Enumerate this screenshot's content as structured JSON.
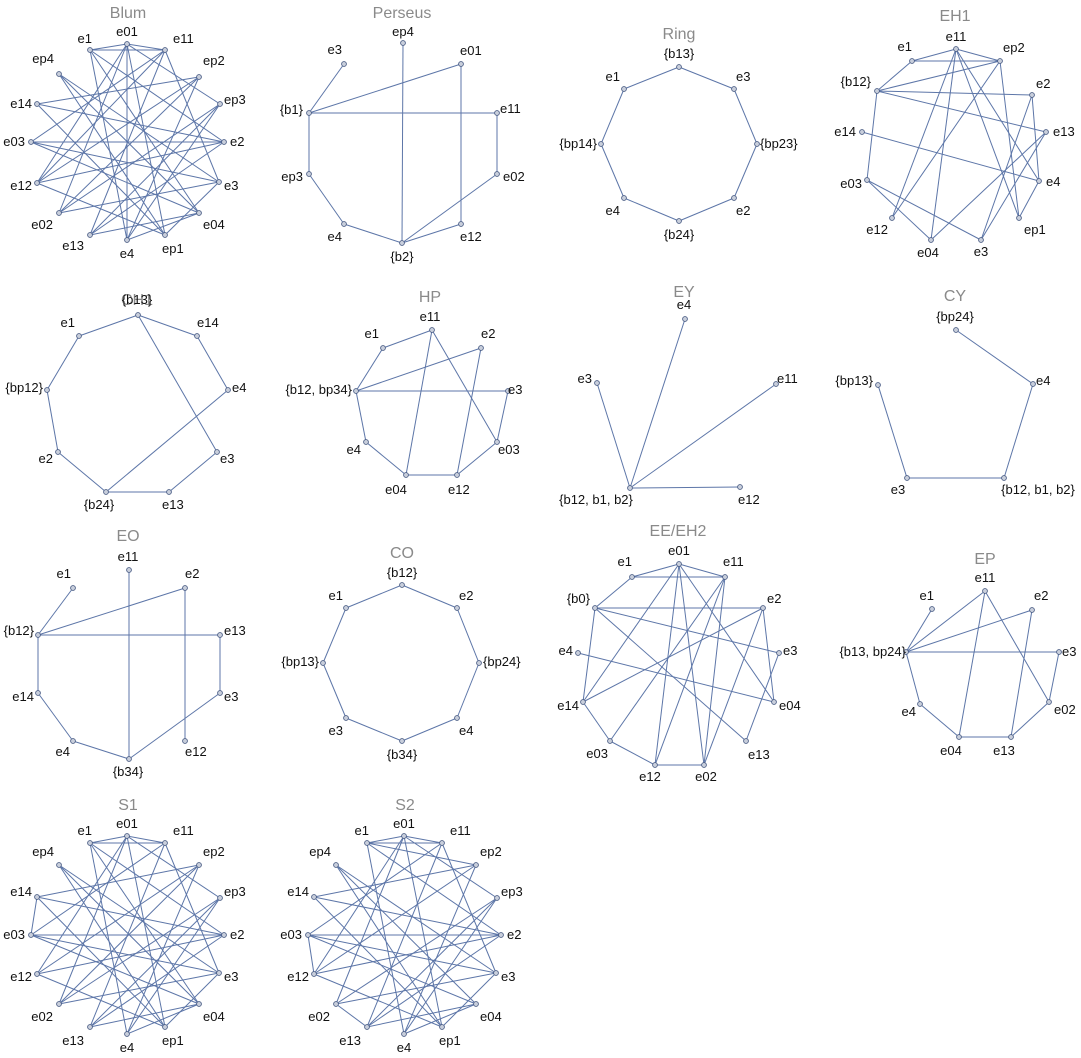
{
  "colors": {
    "edge": "#5d76a8",
    "node_fill": "#c9cfdc",
    "node_stroke": "#4d5f86",
    "title": "#8a8a8a",
    "label": "#111111"
  },
  "graphs": [
    {
      "id": "blum",
      "title": "Blum",
      "nodes": [
        "e01",
        "e11",
        "ep2",
        "ep3",
        "e2",
        "e3",
        "e04",
        "ep1",
        "e4",
        "e13",
        "e02",
        "e12",
        "e03",
        "e14",
        "ep4",
        "e1"
      ],
      "edges": [
        [
          "e1",
          "e01"
        ],
        [
          "e1",
          "e11"
        ],
        [
          "e1",
          "e4"
        ],
        [
          "e1",
          "e2"
        ],
        [
          "e1",
          "e04"
        ],
        [
          "e01",
          "e11"
        ],
        [
          "e01",
          "e12"
        ],
        [
          "e01",
          "e02"
        ],
        [
          "e01",
          "ep1"
        ],
        [
          "e01",
          "e4"
        ],
        [
          "e01",
          "ep3"
        ],
        [
          "e11",
          "e13"
        ],
        [
          "e11",
          "e03"
        ],
        [
          "e11",
          "e3"
        ],
        [
          "ep2",
          "e14"
        ],
        [
          "ep2",
          "e12"
        ],
        [
          "ep2",
          "e4"
        ],
        [
          "ep3",
          "e02"
        ],
        [
          "ep3",
          "e13"
        ],
        [
          "ep4",
          "e3"
        ],
        [
          "ep4",
          "ep1"
        ],
        [
          "ep4",
          "e04"
        ],
        [
          "e14",
          "e2"
        ],
        [
          "e14",
          "ep1"
        ],
        [
          "e03",
          "e3"
        ],
        [
          "e03",
          "e2"
        ],
        [
          "e03",
          "e04"
        ],
        [
          "e12",
          "e2"
        ],
        [
          "e12",
          "e11"
        ],
        [
          "e02",
          "e3"
        ],
        [
          "e02",
          "ep2"
        ],
        [
          "e13",
          "e2"
        ],
        [
          "e13",
          "e04"
        ],
        [
          "e4",
          "e04"
        ],
        [
          "e4",
          "ep3"
        ],
        [
          "ep1",
          "e3"
        ],
        [
          "ep1",
          "e12"
        ]
      ]
    },
    {
      "id": "perseus",
      "title": "Perseus",
      "nodes": [
        "ep4",
        "e01",
        "e11",
        "e02",
        "e12",
        "{b2}",
        "e4",
        "ep3",
        "{b1}",
        "e3"
      ],
      "edges": [
        [
          "e3",
          "{b1}"
        ],
        [
          "{b1}",
          "ep3"
        ],
        [
          "ep3",
          "e4"
        ],
        [
          "e4",
          "{b2}"
        ],
        [
          "{b2}",
          "e12"
        ],
        [
          "{b2}",
          "e02"
        ],
        [
          "e02",
          "e11"
        ],
        [
          "{b1}",
          "e11"
        ],
        [
          "{b1}",
          "e01"
        ],
        [
          "ep4",
          "{b2}"
        ],
        [
          "e01",
          "e12"
        ]
      ]
    },
    {
      "id": "ring",
      "title": "Ring",
      "nodes": [
        "{b13}",
        "e3",
        "{bp23}",
        "e2",
        "{b24}",
        "e4",
        "{bp14}",
        "e1"
      ],
      "edges": [
        [
          "{b13}",
          "e3"
        ],
        [
          "e3",
          "{bp23}"
        ],
        [
          "{bp23}",
          "e2"
        ],
        [
          "e2",
          "{b24}"
        ],
        [
          "{b24}",
          "e4"
        ],
        [
          "e4",
          "{bp14}"
        ],
        [
          "{bp14}",
          "e1"
        ],
        [
          "e1",
          "{b13}"
        ]
      ]
    },
    {
      "id": "eh1",
      "title": "EH1",
      "nodes": [
        "e11",
        "ep2",
        "e2",
        "e13",
        "e4",
        "ep1",
        "e3",
        "e04",
        "e12",
        "e03",
        "e14",
        "{b12}",
        "e1"
      ],
      "edges": [
        [
          "e1",
          "e11"
        ],
        [
          "e1",
          "ep2"
        ],
        [
          "e11",
          "ep2"
        ],
        [
          "e11",
          "e12"
        ],
        [
          "e11",
          "e04"
        ],
        [
          "e11",
          "e4"
        ],
        [
          "e11",
          "ep1"
        ],
        [
          "{b12}",
          "e1"
        ],
        [
          "{b12}",
          "e2"
        ],
        [
          "{b12}",
          "e13"
        ],
        [
          "{b12}",
          "ep2"
        ],
        [
          "{b12}",
          "e03"
        ],
        [
          "e14",
          "e4"
        ],
        [
          "e03",
          "e3"
        ],
        [
          "e03",
          "e04"
        ],
        [
          "e04",
          "e13"
        ],
        [
          "e12",
          "ep2"
        ],
        [
          "e3",
          "e2"
        ],
        [
          "e3",
          "e13"
        ],
        [
          "ep1",
          "ep2"
        ],
        [
          "ep1",
          "e4"
        ],
        [
          "e4",
          "e2"
        ]
      ]
    },
    {
      "id": "ch1",
      "title": "CH1",
      "nodes": [
        "{b13}",
        "e14",
        "e4",
        "e3",
        "e13",
        "{b24}",
        "e2",
        "{bp12}",
        "e1"
      ],
      "edges": [
        [
          "{b13}",
          "e14"
        ],
        [
          "e14",
          "e4"
        ],
        [
          "{b13}",
          "e3"
        ],
        [
          "e3",
          "e13"
        ],
        [
          "e13",
          "{b24}"
        ],
        [
          "{b24}",
          "e2"
        ],
        [
          "e2",
          "{bp12}"
        ],
        [
          "{bp12}",
          "e1"
        ],
        [
          "e1",
          "{b13}"
        ],
        [
          "{b24}",
          "e4"
        ]
      ]
    },
    {
      "id": "hp",
      "title": "HP",
      "nodes": [
        "e11",
        "e2",
        "e3",
        "e03",
        "e12",
        "e04",
        "e4",
        "{b12, bp34}",
        "e1"
      ],
      "edges": [
        [
          "e1",
          "e11"
        ],
        [
          "e1",
          "{b12, bp34}"
        ],
        [
          "{b12, bp34}",
          "e4"
        ],
        [
          "e4",
          "e04"
        ],
        [
          "e04",
          "e12"
        ],
        [
          "e12",
          "e03"
        ],
        [
          "e03",
          "e3"
        ],
        [
          "{b12, bp34}",
          "e3"
        ],
        [
          "{b12, bp34}",
          "e2"
        ],
        [
          "e11",
          "e04"
        ],
        [
          "e11",
          "e03"
        ],
        [
          "e2",
          "e12"
        ]
      ]
    },
    {
      "id": "ey",
      "title": "EY",
      "nodes": [
        "e4",
        "e11",
        "e12",
        "{b12, b1, b2}",
        "e3"
      ],
      "edges": [
        [
          "e3",
          "{b12, b1, b2}"
        ],
        [
          "e4",
          "{b12, b1, b2}"
        ],
        [
          "e11",
          "{b12, b1, b2}"
        ],
        [
          "e12",
          "{b12, b1, b2}"
        ]
      ]
    },
    {
      "id": "cy",
      "title": "CY",
      "nodes": [
        "{bp24}",
        "e4",
        "{b12, b1, b2}",
        "e3",
        "{bp13}"
      ],
      "edges": [
        [
          "{bp24}",
          "e4"
        ],
        [
          "e4",
          "{b12, b1, b2}"
        ],
        [
          "{b12, b1, b2}",
          "e3"
        ],
        [
          "e3",
          "{bp13}"
        ]
      ]
    },
    {
      "id": "eo",
      "title": "EO",
      "nodes": [
        "e11",
        "e2",
        "e13",
        "e3",
        "e12",
        "{b34}",
        "e4",
        "e14",
        "{b12}",
        "e1"
      ],
      "edges": [
        [
          "e1",
          "{b12}"
        ],
        [
          "{b12}",
          "e14"
        ],
        [
          "e14",
          "e4"
        ],
        [
          "e4",
          "{b34}"
        ],
        [
          "{b34}",
          "e3"
        ],
        [
          "e3",
          "e13"
        ],
        [
          "{b12}",
          "e13"
        ],
        [
          "{b12}",
          "e2"
        ],
        [
          "e11",
          "{b34}"
        ],
        [
          "e2",
          "e12"
        ]
      ]
    },
    {
      "id": "co",
      "title": "CO",
      "nodes": [
        "{b12}",
        "e2",
        "{bp24}",
        "e4",
        "{b34}",
        "e3",
        "{bp13}",
        "e1"
      ],
      "edges": [
        [
          "{b12}",
          "e2"
        ],
        [
          "e2",
          "{bp24}"
        ],
        [
          "{bp24}",
          "e4"
        ],
        [
          "e4",
          "{b34}"
        ],
        [
          "{b34}",
          "e3"
        ],
        [
          "e3",
          "{bp13}"
        ],
        [
          "{bp13}",
          "e1"
        ],
        [
          "e1",
          "{b12}"
        ]
      ]
    },
    {
      "id": "eeeh2",
      "title": "EE/EH2",
      "nodes": [
        "e01",
        "e11",
        "e2",
        "e3",
        "e04",
        "e13",
        "e02",
        "e12",
        "e03",
        "e14",
        "e4",
        "{b0}",
        "e1"
      ],
      "edges": [
        [
          "e1",
          "e01"
        ],
        [
          "e1",
          "e11"
        ],
        [
          "e01",
          "e11"
        ],
        [
          "{b0}",
          "e1"
        ],
        [
          "{b0}",
          "e14"
        ],
        [
          "{b0}",
          "e2"
        ],
        [
          "{b0}",
          "e3"
        ],
        [
          "{b0}",
          "e13"
        ],
        [
          "e4",
          "e04"
        ],
        [
          "e14",
          "e03"
        ],
        [
          "e14",
          "e01"
        ],
        [
          "e03",
          "e12"
        ],
        [
          "e03",
          "e11"
        ],
        [
          "e12",
          "e02"
        ],
        [
          "e12",
          "e01"
        ],
        [
          "e12",
          "e11"
        ],
        [
          "e02",
          "e2"
        ],
        [
          "e02",
          "e11"
        ],
        [
          "e02",
          "e01"
        ],
        [
          "e13",
          "e3"
        ],
        [
          "e04",
          "e2"
        ],
        [
          "e04",
          "e01"
        ],
        [
          "e14",
          "e2"
        ]
      ]
    },
    {
      "id": "ep",
      "title": "EP",
      "nodes": [
        "e11",
        "e2",
        "e3",
        "e02",
        "e13",
        "e04",
        "e4",
        "{b13, bp24}",
        "e1"
      ],
      "edges": [
        [
          "e1",
          "{b13, bp24}"
        ],
        [
          "{b13, bp24}",
          "e4"
        ],
        [
          "e4",
          "e04"
        ],
        [
          "e04",
          "e13"
        ],
        [
          "e13",
          "e02"
        ],
        [
          "e02",
          "e3"
        ],
        [
          "{b13, bp24}",
          "e3"
        ],
        [
          "{b13, bp24}",
          "e11"
        ],
        [
          "{b13, bp24}",
          "e2"
        ],
        [
          "e11",
          "e04"
        ],
        [
          "e11",
          "e02"
        ],
        [
          "e2",
          "e13"
        ]
      ]
    },
    {
      "id": "s1",
      "title": "S1",
      "nodes": [
        "e01",
        "e11",
        "ep2",
        "ep3",
        "e2",
        "e3",
        "e04",
        "ep1",
        "e4",
        "e13",
        "e02",
        "e12",
        "e03",
        "e14",
        "ep4",
        "e1"
      ],
      "edges": [
        [
          "e1",
          "e01"
        ],
        [
          "e1",
          "e11"
        ],
        [
          "e1",
          "e4"
        ],
        [
          "e1",
          "e2"
        ],
        [
          "e01",
          "e11"
        ],
        [
          "e01",
          "e12"
        ],
        [
          "e01",
          "e02"
        ],
        [
          "e01",
          "ep1"
        ],
        [
          "e01",
          "ep3"
        ],
        [
          "e11",
          "e13"
        ],
        [
          "e11",
          "e03"
        ],
        [
          "e11",
          "e3"
        ],
        [
          "ep2",
          "e14"
        ],
        [
          "ep2",
          "e12"
        ],
        [
          "ep2",
          "e4"
        ],
        [
          "ep3",
          "e02"
        ],
        [
          "ep3",
          "e13"
        ],
        [
          "ep4",
          "e3"
        ],
        [
          "ep4",
          "ep1"
        ],
        [
          "ep4",
          "e04"
        ],
        [
          "e14",
          "e2"
        ],
        [
          "e14",
          "ep1"
        ],
        [
          "e03",
          "e3"
        ],
        [
          "e03",
          "e2"
        ],
        [
          "e03",
          "e04"
        ],
        [
          "e12",
          "e2"
        ],
        [
          "e02",
          "e3"
        ],
        [
          "e02",
          "ep2"
        ],
        [
          "e13",
          "e2"
        ],
        [
          "e13",
          "e04"
        ],
        [
          "e4",
          "e04"
        ],
        [
          "e4",
          "ep3"
        ],
        [
          "ep1",
          "e3"
        ],
        [
          "ep1",
          "e12"
        ],
        [
          "e1",
          "e04"
        ],
        [
          "e14",
          "e03"
        ]
      ]
    },
    {
      "id": "s2",
      "title": "S2",
      "nodes": [
        "e01",
        "e11",
        "ep2",
        "ep3",
        "e2",
        "e3",
        "e04",
        "ep1",
        "e4",
        "e13",
        "e02",
        "e12",
        "e03",
        "e14",
        "ep4",
        "e1"
      ],
      "edges": [
        [
          "e1",
          "e01"
        ],
        [
          "e1",
          "e11"
        ],
        [
          "e1",
          "e4"
        ],
        [
          "e1",
          "e2"
        ],
        [
          "e1",
          "ep2"
        ],
        [
          "e01",
          "e11"
        ],
        [
          "e01",
          "e12"
        ],
        [
          "e01",
          "e02"
        ],
        [
          "e01",
          "ep1"
        ],
        [
          "e01",
          "ep3"
        ],
        [
          "e11",
          "e13"
        ],
        [
          "e11",
          "e03"
        ],
        [
          "e11",
          "e3"
        ],
        [
          "ep2",
          "e14"
        ],
        [
          "ep2",
          "e12"
        ],
        [
          "ep2",
          "e4"
        ],
        [
          "ep3",
          "e02"
        ],
        [
          "ep3",
          "e13"
        ],
        [
          "ep4",
          "e3"
        ],
        [
          "ep4",
          "ep1"
        ],
        [
          "ep4",
          "e04"
        ],
        [
          "e14",
          "e2"
        ],
        [
          "e14",
          "ep1"
        ],
        [
          "e03",
          "e3"
        ],
        [
          "e03",
          "e2"
        ],
        [
          "e03",
          "e04"
        ],
        [
          "e12",
          "e2"
        ],
        [
          "e02",
          "e3"
        ],
        [
          "e13",
          "e2"
        ],
        [
          "e13",
          "e04"
        ],
        [
          "e4",
          "e04"
        ],
        [
          "e4",
          "ep3"
        ],
        [
          "ep1",
          "e3"
        ],
        [
          "ep1",
          "e12"
        ],
        [
          "e12",
          "e03"
        ],
        [
          "e02",
          "e13"
        ]
      ]
    }
  ]
}
